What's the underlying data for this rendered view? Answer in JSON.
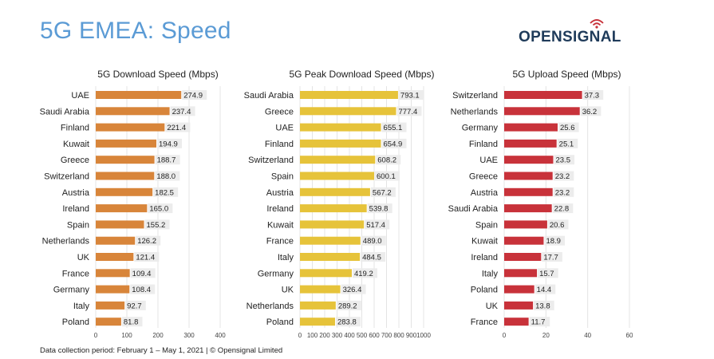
{
  "header": {
    "title": "5G EMEA: Speed",
    "logo_text": "OPENSIGNAL"
  },
  "footer": {
    "text": "Data collection period: February 1 – May 1, 2021  |  © Opensignal Limited"
  },
  "chart_data": [
    {
      "type": "bar",
      "orientation": "horizontal",
      "title": "5G Download Speed (Mbps)",
      "color": "#d8853a",
      "xlim": [
        0,
        400
      ],
      "xticks": [
        0,
        100,
        200,
        300,
        400
      ],
      "grid": true,
      "categories": [
        "UAE",
        "Saudi Arabia",
        "Finland",
        "Kuwait",
        "Greece",
        "Switzerland",
        "Austria",
        "Ireland",
        "Spain",
        "Netherlands",
        "UK",
        "France",
        "Germany",
        "Italy",
        "Poland"
      ],
      "values": [
        274.9,
        237.4,
        221.4,
        194.9,
        188.7,
        188.0,
        182.5,
        165.0,
        155.2,
        126.2,
        121.4,
        109.4,
        108.4,
        92.7,
        81.8
      ],
      "labels": [
        "274.9",
        "237.4",
        "221.4",
        "194.9",
        "188.7",
        "188.0",
        "182.5",
        "165.0",
        "155.2",
        "126.2",
        "121.4",
        "109.4",
        "108.4",
        "92.7",
        "81.8"
      ]
    },
    {
      "type": "bar",
      "orientation": "horizontal",
      "title": "5G Peak Download Speed (Mbps)",
      "color": "#e6c33a",
      "xlim": [
        0,
        1000
      ],
      "xticks": [
        0,
        100,
        200,
        300,
        400,
        500,
        600,
        700,
        800,
        900,
        1000
      ],
      "grid": true,
      "categories": [
        "Saudi Arabia",
        "Greece",
        "UAE",
        "Finland",
        "Switzerland",
        "Spain",
        "Austria",
        "Ireland",
        "Kuwait",
        "France",
        "Italy",
        "Germany",
        "UK",
        "Netherlands",
        "Poland"
      ],
      "values": [
        793.1,
        777.4,
        655.1,
        654.9,
        608.2,
        600.1,
        567.2,
        539.8,
        517.4,
        489.0,
        484.5,
        419.2,
        326.4,
        289.2,
        283.8
      ],
      "labels": [
        "793.1",
        "777.4",
        "655.1",
        "654.9",
        "608.2",
        "600.1",
        "567.2",
        "539.8",
        "517.4",
        "489.0",
        "484.5",
        "419.2",
        "326.4",
        "289.2",
        "283.8"
      ]
    },
    {
      "type": "bar",
      "orientation": "horizontal",
      "title": "5G Upload Speed (Mbps)",
      "color": "#c8323a",
      "xlim": [
        0,
        60
      ],
      "xticks": [
        0,
        20,
        40,
        60
      ],
      "grid": true,
      "categories": [
        "Switzerland",
        "Netherlands",
        "Germany",
        "Finland",
        "UAE",
        "Greece",
        "Austria",
        "Saudi Arabia",
        "Spain",
        "Kuwait",
        "Ireland",
        "Italy",
        "Poland",
        "UK",
        "France"
      ],
      "values": [
        37.3,
        36.2,
        25.6,
        25.1,
        23.5,
        23.2,
        23.2,
        22.8,
        20.6,
        18.9,
        17.7,
        15.7,
        14.4,
        13.8,
        11.7
      ],
      "labels": [
        "37.3",
        "36.2",
        "25.6",
        "25.1",
        "23.5",
        "23.2",
        "23.2",
        "22.8",
        "20.6",
        "18.9",
        "17.7",
        "15.7",
        "14.4",
        "13.8",
        "11.7"
      ]
    }
  ]
}
